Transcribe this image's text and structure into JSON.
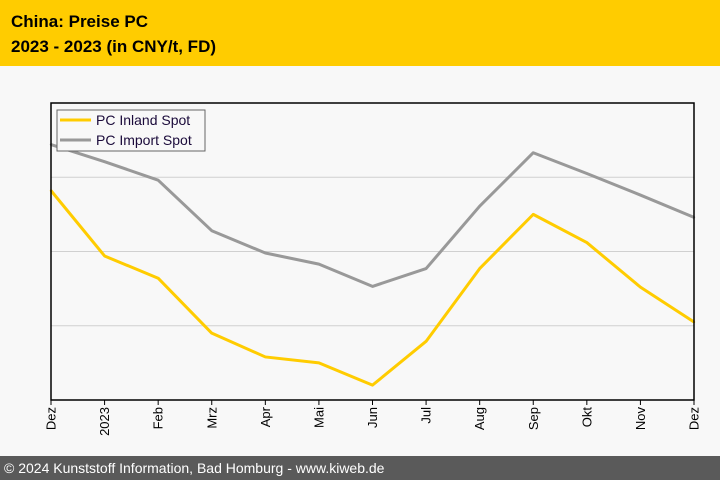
{
  "header": {
    "title": "China: Preise PC",
    "subtitle": "2023 - 2023 (in CNY/t, FD)"
  },
  "footer": {
    "text": "© 2024 Kunststoff Information, Bad Homburg - www.kiweb.de"
  },
  "colors": {
    "header_bg": "#ffcc00",
    "footer_bg": "#5a5a5a",
    "inland": "#ffcc00",
    "import": "#999999"
  },
  "chart_data": {
    "type": "line",
    "title": "China: Preise PC",
    "subtitle": "2023 - 2023 (in CNY/t, FD)",
    "xlabel": "",
    "ylabel": "",
    "categories": [
      "Dez",
      "2023",
      "Feb",
      "Mrz",
      "Apr",
      "Mai",
      "Jun",
      "Jul",
      "Aug",
      "Sep",
      "Okt",
      "Nov",
      "Dez"
    ],
    "y_units": "relative (no y tick labels shown; gridlines at 1, 2, 3)",
    "ylim": [
      0,
      4
    ],
    "gridlines": [
      1,
      2,
      3
    ],
    "grid": true,
    "legend_position": "top-left",
    "series": [
      {
        "name": "PC Inland Spot",
        "color": "#ffcc00",
        "values": [
          2.82,
          1.94,
          1.64,
          0.9,
          0.58,
          0.5,
          0.2,
          0.79,
          1.77,
          2.5,
          2.12,
          1.52,
          1.05
        ]
      },
      {
        "name": "PC Import Spot",
        "color": "#999999",
        "values": [
          3.44,
          3.21,
          2.96,
          2.28,
          1.98,
          1.83,
          1.53,
          1.77,
          2.61,
          3.33,
          3.05,
          2.76,
          2.46
        ]
      }
    ]
  }
}
